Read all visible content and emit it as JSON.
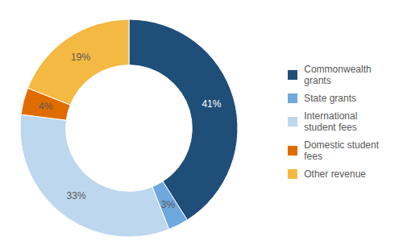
{
  "chart_data": {
    "type": "pie",
    "categories": [
      "Commonwealth\ngrants",
      "State grants",
      "International\nstudent fees",
      "Domestic student\nfees",
      "Other revenue"
    ],
    "values": [
      41,
      3,
      33,
      4,
      19
    ],
    "value_labels": [
      "41%",
      "3%",
      "33%",
      "4%",
      "19%"
    ],
    "colors": [
      "#1F4E79",
      "#6FA8DC",
      "#BDD7EE",
      "#E06C00",
      "#F4B942"
    ],
    "data_labels": true,
    "legend": "right"
  }
}
